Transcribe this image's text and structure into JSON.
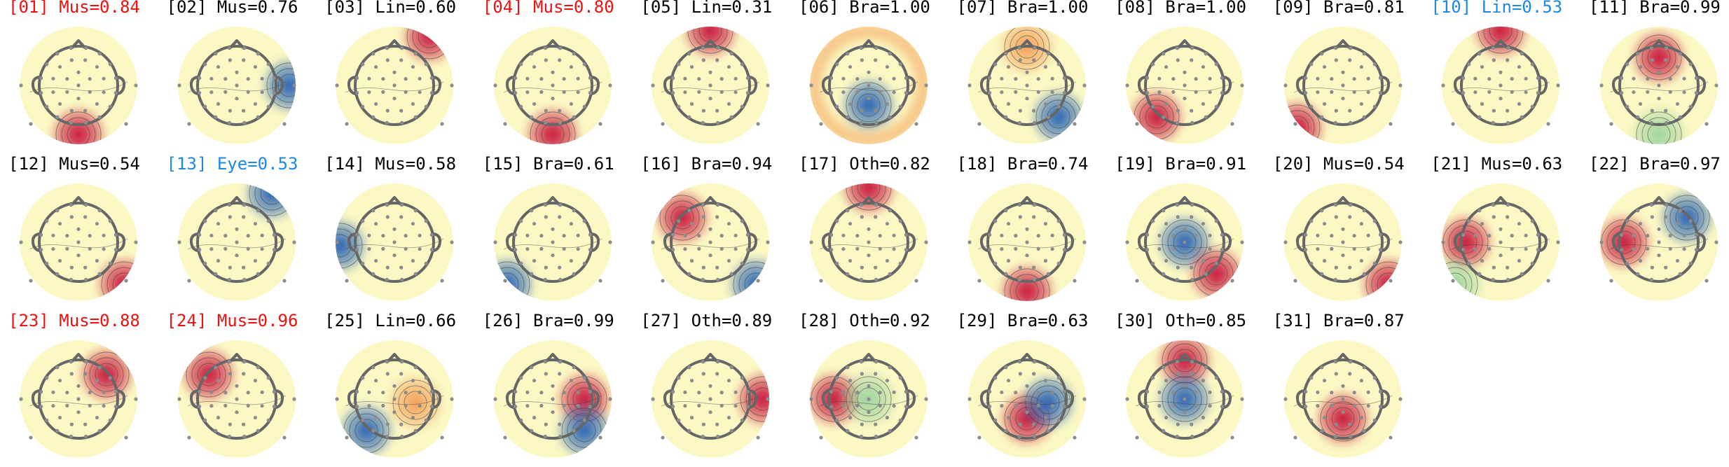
{
  "figure": {
    "components": [
      {
        "label": "[01] Mus=0.84",
        "flag": "red",
        "blobs": [
          {
            "pos": "bottom-center",
            "tone": "red"
          }
        ]
      },
      {
        "label": "[02] Mus=0.76",
        "flag": "none",
        "blobs": [
          {
            "pos": "right-edge",
            "tone": "blue"
          }
        ]
      },
      {
        "label": "[03] Lin=0.60",
        "flag": "none",
        "blobs": [
          {
            "pos": "top-right-rim",
            "tone": "red"
          }
        ]
      },
      {
        "label": "[04] Mus=0.80",
        "flag": "red",
        "blobs": [
          {
            "pos": "bottom-center",
            "tone": "red"
          }
        ]
      },
      {
        "label": "[05] Lin=0.31",
        "flag": "none",
        "blobs": [
          {
            "pos": "top-rim",
            "tone": "red"
          }
        ]
      },
      {
        "label": "[06] Bra=1.00",
        "flag": "none",
        "blobs": [
          {
            "pos": "center-low",
            "tone": "blue"
          },
          {
            "pos": "rim",
            "tone": "orange"
          }
        ]
      },
      {
        "label": "[07] Bra=1.00",
        "flag": "none",
        "blobs": [
          {
            "pos": "bottom-right",
            "tone": "blue"
          },
          {
            "pos": "top",
            "tone": "orange"
          }
        ]
      },
      {
        "label": "[08] Bra=1.00",
        "flag": "none",
        "blobs": [
          {
            "pos": "bottom-left",
            "tone": "red"
          }
        ]
      },
      {
        "label": "[09] Bra=0.81",
        "flag": "none",
        "blobs": [
          {
            "pos": "bottom-left-rim",
            "tone": "red"
          }
        ]
      },
      {
        "label": "[10] Lin=0.53",
        "flag": "blue",
        "blobs": [
          {
            "pos": "top-rim",
            "tone": "red"
          }
        ]
      },
      {
        "label": "[11] Bra=0.99",
        "flag": "none",
        "blobs": [
          {
            "pos": "upper-center",
            "tone": "red"
          },
          {
            "pos": "bottom",
            "tone": "green"
          }
        ]
      },
      {
        "label": "[12] Mus=0.54",
        "flag": "none",
        "blobs": [
          {
            "pos": "bottom-right-rim",
            "tone": "red"
          }
        ]
      },
      {
        "label": "[13] Eye=0.53",
        "flag": "blue",
        "blobs": [
          {
            "pos": "top-right-rim",
            "tone": "blue"
          }
        ]
      },
      {
        "label": "[14] Mus=0.58",
        "flag": "none",
        "blobs": [
          {
            "pos": "left-edge",
            "tone": "blue"
          }
        ]
      },
      {
        "label": "[15] Bra=0.61",
        "flag": "none",
        "blobs": [
          {
            "pos": "bottom-left-rim",
            "tone": "blue"
          }
        ]
      },
      {
        "label": "[16] Bra=0.94",
        "flag": "none",
        "blobs": [
          {
            "pos": "upper-left",
            "tone": "red"
          },
          {
            "pos": "bottom-right-rim",
            "tone": "blue"
          }
        ]
      },
      {
        "label": "[17] Oth=0.82",
        "flag": "none",
        "blobs": [
          {
            "pos": "top-rim",
            "tone": "red"
          }
        ]
      },
      {
        "label": "[18] Bra=0.74",
        "flag": "none",
        "blobs": [
          {
            "pos": "bottom-center",
            "tone": "red"
          }
        ]
      },
      {
        "label": "[19] Bra=0.91",
        "flag": "none",
        "blobs": [
          {
            "pos": "center",
            "tone": "blue"
          },
          {
            "pos": "bottom-right",
            "tone": "red"
          }
        ]
      },
      {
        "label": "[20] Mus=0.54",
        "flag": "none",
        "blobs": [
          {
            "pos": "bottom-right-rim",
            "tone": "red"
          }
        ]
      },
      {
        "label": "[21] Mus=0.63",
        "flag": "none",
        "blobs": [
          {
            "pos": "left",
            "tone": "red"
          },
          {
            "pos": "bottom-left-rim",
            "tone": "green"
          }
        ]
      },
      {
        "label": "[22] Bra=0.97",
        "flag": "none",
        "blobs": [
          {
            "pos": "upper-right",
            "tone": "blue"
          },
          {
            "pos": "left",
            "tone": "red"
          }
        ]
      },
      {
        "label": "[23] Mus=0.88",
        "flag": "red",
        "blobs": [
          {
            "pos": "upper-right",
            "tone": "red"
          }
        ]
      },
      {
        "label": "[24] Mus=0.96",
        "flag": "red",
        "blobs": [
          {
            "pos": "upper-left",
            "tone": "red"
          }
        ]
      },
      {
        "label": "[25] Lin=0.66",
        "flag": "none",
        "blobs": [
          {
            "pos": "center-right",
            "tone": "orange"
          },
          {
            "pos": "bottom-left",
            "tone": "blue"
          }
        ]
      },
      {
        "label": "[26] Bra=0.99",
        "flag": "none",
        "blobs": [
          {
            "pos": "right",
            "tone": "red"
          },
          {
            "pos": "bottom-right",
            "tone": "blue"
          }
        ]
      },
      {
        "label": "[27] Oth=0.89",
        "flag": "none",
        "blobs": [
          {
            "pos": "right-edge",
            "tone": "red"
          }
        ]
      },
      {
        "label": "[28] Oth=0.92",
        "flag": "none",
        "blobs": [
          {
            "pos": "left",
            "tone": "red"
          },
          {
            "pos": "center",
            "tone": "green"
          }
        ]
      },
      {
        "label": "[29] Bra=0.63",
        "flag": "none",
        "blobs": [
          {
            "pos": "center-low",
            "tone": "red"
          },
          {
            "pos": "center-right",
            "tone": "blue"
          }
        ]
      },
      {
        "label": "[30] Oth=0.85",
        "flag": "none",
        "blobs": [
          {
            "pos": "top",
            "tone": "red"
          },
          {
            "pos": "center",
            "tone": "blue"
          }
        ]
      },
      {
        "label": "[31] Bra=0.87",
        "flag": "none",
        "blobs": [
          {
            "pos": "center-low",
            "tone": "red"
          }
        ]
      }
    ],
    "colors": {
      "flag_red": "#ee1111",
      "flag_blue": "#1e88e5",
      "neutral": "#fbf8c4",
      "red": "#c8143c",
      "orange": "#f4a05a",
      "blue": "#2b65b5",
      "green": "#9fd3a0",
      "head_outline": "#666666",
      "sensor": "#8c8c8c"
    }
  }
}
